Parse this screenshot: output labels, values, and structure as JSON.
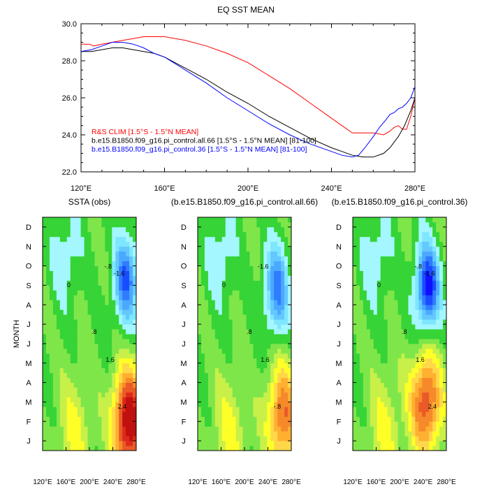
{
  "chart_data": [
    {
      "type": "line",
      "title": "EQ SST MEAN",
      "xlabel": "",
      "ylabel": "",
      "xlim": [
        120,
        280
      ],
      "ylim": [
        22,
        30
      ],
      "x_ticks": [
        120,
        160,
        200,
        240,
        280
      ],
      "x_tick_labels": [
        "120°E",
        "160°E",
        "200°E",
        "240°E",
        "280°E"
      ],
      "y_ticks": [
        22,
        24,
        26,
        28,
        30
      ],
      "y_tick_labels": [
        "22.0",
        "24.0",
        "26.0",
        "28.0",
        "30.0"
      ],
      "grid": false,
      "legend_position": "bottom-left inside",
      "series": [
        {
          "name": "R&S CLIM [1.5°S - 1.5°N MEAN]",
          "color": "#ff0000",
          "x": [
            120,
            124,
            126,
            130,
            135,
            140,
            145,
            150,
            155,
            160,
            170,
            180,
            190,
            200,
            210,
            220,
            230,
            240,
            245,
            250,
            255,
            260,
            265,
            268,
            270,
            272,
            274,
            276,
            278,
            280
          ],
          "y": [
            28.9,
            28.9,
            28.8,
            28.9,
            29.0,
            29.1,
            29.2,
            29.3,
            29.3,
            29.3,
            29.1,
            28.8,
            28.4,
            27.9,
            27.2,
            26.5,
            25.7,
            24.9,
            24.5,
            24.1,
            24.1,
            24.1,
            24.0,
            24.2,
            24.4,
            24.5,
            24.3,
            24.3,
            25.0,
            26.0
          ]
        },
        {
          "name": "b.e15.B1850.f09_g16.pi_control.all.66 [1.5°S - 1.5°N MEAN] [81-100]",
          "color": "#000000",
          "x": [
            120,
            125,
            130,
            135,
            140,
            145,
            150,
            155,
            160,
            170,
            180,
            190,
            200,
            210,
            220,
            230,
            240,
            245,
            250,
            255,
            260,
            265,
            268,
            270,
            272,
            275,
            278,
            280
          ],
          "y": [
            28.5,
            28.5,
            28.6,
            28.7,
            28.7,
            28.6,
            28.5,
            28.4,
            28.2,
            27.6,
            27.0,
            26.3,
            25.7,
            25.0,
            24.4,
            23.8,
            23.3,
            23.1,
            22.9,
            22.8,
            22.8,
            23.0,
            23.3,
            23.6,
            23.9,
            24.5,
            25.3,
            26.0
          ]
        },
        {
          "name": "b.e15.B1850.f09_g16.pi_control.36 [1.5°S - 1.5°N MEAN] [81-100]",
          "color": "#0000ff",
          "x": [
            120,
            125,
            130,
            135,
            140,
            145,
            150,
            155,
            160,
            170,
            180,
            190,
            200,
            210,
            220,
            230,
            240,
            245,
            250,
            253,
            256,
            260,
            263,
            266,
            268,
            270,
            272,
            274,
            276,
            278,
            280
          ],
          "y": [
            28.5,
            28.6,
            28.8,
            29.0,
            29.0,
            28.9,
            28.7,
            28.4,
            28.2,
            27.5,
            26.8,
            26.0,
            25.3,
            24.6,
            24.0,
            23.5,
            23.1,
            22.9,
            22.8,
            22.9,
            23.3,
            23.9,
            24.4,
            24.8,
            25.1,
            25.2,
            25.4,
            25.5,
            25.7,
            26.0,
            26.6
          ]
        }
      ]
    },
    {
      "type": "heatmap",
      "title": "SSTA (obs)",
      "ylabel": "MONTH",
      "x_tick_labels": [
        "120°E",
        "160°E",
        "200°E",
        "240°E",
        "280°E"
      ],
      "y_tick_labels": [
        "J",
        "F",
        "M",
        "A",
        "M",
        "J",
        "J",
        "A",
        "S",
        "O",
        "N",
        "D"
      ],
      "contour_labels": [
        "0",
        ".8",
        "1.6",
        "2.4",
        "-.8",
        "-1.6"
      ],
      "features": {
        "cool_center_lon": 262,
        "cool_center_month": 9.3,
        "cool_amp": -2.4,
        "warm_center_lon": 267,
        "warm_center_month": 2.0,
        "warm_amp": 3.8
      }
    },
    {
      "type": "heatmap",
      "title": "(b.e15.B1850.f09_g16.pi_control.all.66)",
      "ylabel": "",
      "x_tick_labels": [
        "120°E",
        "160°E",
        "200°E",
        "240°E",
        "280°E"
      ],
      "y_tick_labels": [
        "J",
        "F",
        "M",
        "A",
        "M",
        "J",
        "J",
        "A",
        "S",
        "O",
        "N",
        "D"
      ],
      "contour_labels": [
        "0",
        ".8",
        "1.6",
        "-.8",
        "-1.6"
      ],
      "features": {
        "cool_center_lon": 255,
        "cool_center_month": 8.8,
        "cool_amp": -2.2,
        "warm_center_lon": 265,
        "warm_center_month": 2.3,
        "warm_amp": 2.4
      }
    },
    {
      "type": "heatmap",
      "title": "(b.e15.B1850.f09_g16.pi_control.36)",
      "ylabel": "",
      "x_tick_labels": [
        "120°E",
        "160°E",
        "200°E",
        "240°E",
        "280°E"
      ],
      "y_tick_labels": [
        "J",
        "F",
        "M",
        "A",
        "M",
        "J",
        "J",
        "A",
        "S",
        "O",
        "N",
        "D"
      ],
      "contour_labels": [
        "0",
        ".8",
        "1.6",
        "2.4",
        "-.8",
        "-1.6"
      ],
      "features": {
        "cool_center_lon": 248,
        "cool_center_month": 8.9,
        "cool_amp": -3.0,
        "warm_center_lon": 245,
        "warm_center_month": 3.0,
        "warm_amp": 2.8
      }
    }
  ]
}
